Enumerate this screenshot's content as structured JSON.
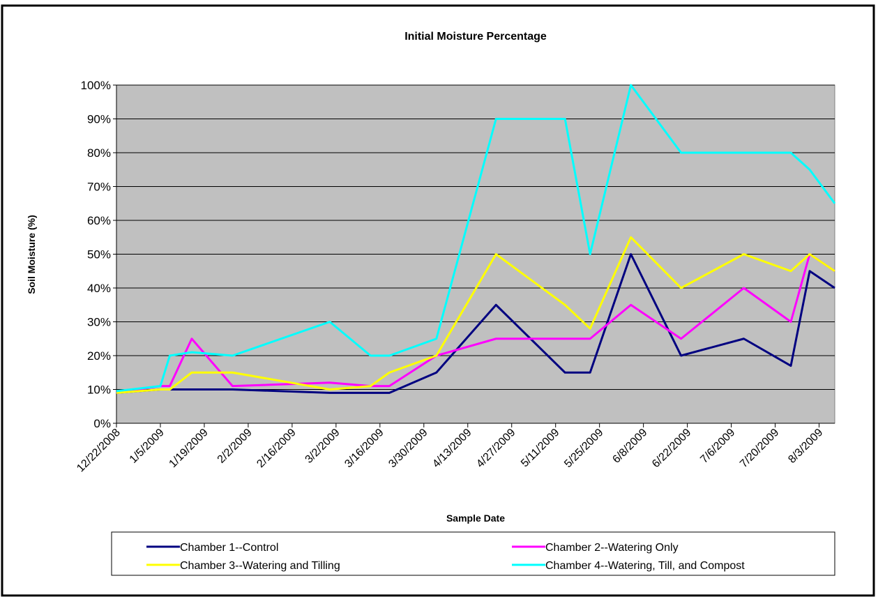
{
  "chart_data": {
    "type": "line",
    "title": "Initial Moisture Percentage",
    "x_label": "Sample Date",
    "y_label": "Soil Moisture (%)",
    "x": [
      "12/22/2008",
      "1/5/2009",
      "1/8/2009",
      "1/15/2009",
      "1/28/2009",
      "2/28/2009",
      "3/13/2009",
      "3/19/2009",
      "4/3/2009",
      "4/22/2009",
      "5/14/2009",
      "5/22/2009",
      "6/4/2009",
      "6/20/2009",
      "7/10/2009",
      "7/25/2009",
      "7/31/2009",
      "8/8/2009"
    ],
    "series": [
      {
        "name": "Chamber 1--Control",
        "color": "#000080",
        "values": [
          9,
          10,
          10,
          10,
          10,
          9,
          9,
          9,
          15,
          35,
          15,
          15,
          50,
          20,
          25,
          17,
          45,
          40
        ]
      },
      {
        "name": "Chamber 2--Watering Only",
        "color": "#ff00ff",
        "values": [
          9,
          11,
          11,
          25,
          11,
          12,
          11,
          11,
          20,
          25,
          25,
          25,
          35,
          25,
          40,
          30,
          50,
          45
        ]
      },
      {
        "name": "Chamber 3--Watering and Tilling",
        "color": "#ffff00",
        "values": [
          9,
          10,
          10,
          15,
          15,
          10,
          11,
          15,
          20,
          50,
          35,
          28,
          55,
          40,
          50,
          45,
          50,
          45
        ]
      },
      {
        "name": "Chamber 4--Watering, Till, and Compost",
        "color": "#00ffff",
        "values": [
          9.5,
          11,
          20,
          21,
          20,
          30,
          20,
          20,
          25,
          90,
          90,
          50,
          100,
          80,
          80,
          80,
          75,
          65
        ]
      }
    ],
    "xlim": [
      "12/22/2008",
      "8/8/2009"
    ],
    "xticks": [
      "12/22/2008",
      "1/5/2009",
      "1/19/2009",
      "2/2/2009",
      "2/16/2009",
      "3/2/2009",
      "3/16/2009",
      "3/30/2009",
      "4/13/2009",
      "4/27/2009",
      "5/11/2009",
      "5/25/2009",
      "6/8/2009",
      "6/22/2009",
      "7/6/2009",
      "7/20/2009",
      "8/3/2009"
    ],
    "ylim": [
      0,
      100
    ],
    "yticks": [
      {
        "value": 0,
        "label": "0%"
      },
      {
        "value": 10,
        "label": "10%"
      },
      {
        "value": 20,
        "label": "20%"
      },
      {
        "value": 30,
        "label": "30%"
      },
      {
        "value": 40,
        "label": "40%"
      },
      {
        "value": 50,
        "label": "50%"
      },
      {
        "value": 60,
        "label": "60%"
      },
      {
        "value": 70,
        "label": "70%"
      },
      {
        "value": 80,
        "label": "80%"
      },
      {
        "value": 90,
        "label": "90%"
      },
      {
        "value": 100,
        "label": "100%"
      }
    ],
    "grid": true,
    "plot_background": "#c0c0c0",
    "legend_position": "bottom"
  }
}
